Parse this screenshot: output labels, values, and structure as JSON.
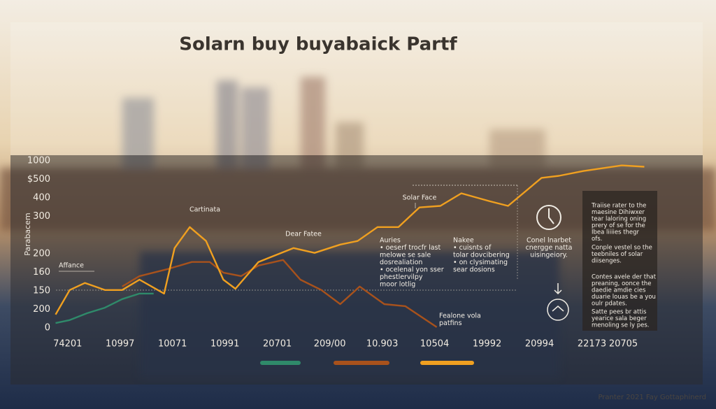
{
  "chart_data": {
    "type": "line",
    "title": "Solarn buy buyabaick Partf",
    "ylabel": "Parabacem",
    "xlim": [
      -0.25,
      11.1
    ],
    "ylim": [
      0,
      9
    ],
    "xticks": [
      {
        "value": 0,
        "label": "74201"
      },
      {
        "value": 1,
        "label": "10997"
      },
      {
        "value": 2,
        "label": "10071"
      },
      {
        "value": 3,
        "label": "10991"
      },
      {
        "value": 4,
        "label": "20701"
      },
      {
        "value": 5,
        "label": "209/00"
      },
      {
        "value": 6,
        "label": "10.903"
      },
      {
        "value": 7,
        "label": "10504"
      },
      {
        "value": 8,
        "label": "19992"
      },
      {
        "value": 9,
        "label": "20994"
      },
      {
        "value": 10,
        "label": "22173"
      },
      {
        "value": 10.6,
        "label": "20705"
      }
    ],
    "yticks": [
      0,
      {
        "value": 1,
        "label": "200"
      },
      {
        "value": 2,
        "label": "150"
      },
      {
        "value": 3,
        "label": "160"
      },
      {
        "value": 4,
        "label": "200"
      },
      {
        "value": 6,
        "label": "300"
      },
      {
        "value": 7,
        "label": "400"
      },
      {
        "value": 8,
        "label": "$500"
      },
      {
        "value": 9,
        "label": "1000"
      }
    ],
    "series": [
      {
        "color": "#2f8a6a",
        "x": [
          -0.23,
          0.04,
          0.37,
          0.71,
          1.04,
          1.37,
          1.64
        ],
        "values": [
          0.26,
          0.42,
          0.79,
          1.09,
          1.55,
          1.85,
          1.85
        ]
      },
      {
        "color": "#a8521c",
        "x": [
          1.04,
          1.37,
          1.91,
          2.37,
          2.71,
          2.97,
          3.31,
          3.64,
          4.11,
          4.44,
          4.84,
          5.2,
          5.57,
          6.04,
          6.44,
          7.04
        ],
        "values": [
          2.23,
          2.79,
          3.17,
          3.55,
          3.55,
          2.98,
          2.79,
          3.36,
          3.66,
          2.6,
          2.04,
          1.28,
          2.23,
          1.28,
          1.17,
          0.04
        ]
      },
      {
        "color": "#f0a020",
        "x": [
          -0.23,
          0.04,
          0.33,
          0.71,
          1.04,
          1.37,
          1.84,
          2.04,
          2.33,
          2.64,
          2.97,
          3.2,
          3.64,
          4.31,
          4.71,
          5.2,
          5.53,
          5.91,
          6.31,
          6.71,
          7.11,
          7.51,
          8.04,
          8.4,
          9.04,
          9.37,
          9.84,
          10.57,
          11
        ],
        "values": [
          0.72,
          2.04,
          2.42,
          2.04,
          2.04,
          2.6,
          1.85,
          4.3,
          5.43,
          4.68,
          2.6,
          2.11,
          3.55,
          4.3,
          4.04,
          4.49,
          4.68,
          5.43,
          5.43,
          6.49,
          6.57,
          7.25,
          6.83,
          6.57,
          8.08,
          8.19,
          8.45,
          8.75,
          8.68
        ]
      }
    ],
    "annotations": [
      {
        "lines": [
          "Cartinata"
        ]
      },
      {
        "lines": [
          "Dear Fatee"
        ]
      },
      {
        "lines": [
          "Solar Face"
        ]
      },
      {
        "lines": [
          "Affance"
        ]
      },
      {
        "lines": [
          "Auries",
          "• oeserf trocfr last",
          "  melowe se sale",
          "  dosrealiation",
          "• ocelenal yon sser",
          "  phestlervilpy",
          "  moor lotlig"
        ]
      },
      {
        "lines": [
          "Nakee",
          "• cuisnts of",
          "  tolar dovcibering",
          "• on clysimating",
          "  sear dosions"
        ]
      },
      {
        "lines": [
          "Fealone vola",
          "patfins"
        ]
      },
      {
        "lines": [
          "Conel lnarbet",
          "cnergge natta",
          "uisingeiory."
        ]
      }
    ],
    "panel": [
      [
        "Traiise rater to the",
        "maesine Dihiwxer",
        "tear laloring oning",
        "prery of se for the",
        "Ibea liiiies thegr",
        "ofs."
      ],
      [
        "Conple vestel so the",
        "teebniles of solar",
        "diisenges."
      ],
      [
        "Contes avele der that",
        "preaning, oonce the",
        "daedie amdie cies",
        "duarie louas be a you",
        "oulr pdates."
      ],
      [
        "Satte pees br attis",
        "yearice sala beger",
        "menoling se ly pes."
      ]
    ],
    "footer": "Pranter 2021 Fay Gottaphinerd"
  }
}
